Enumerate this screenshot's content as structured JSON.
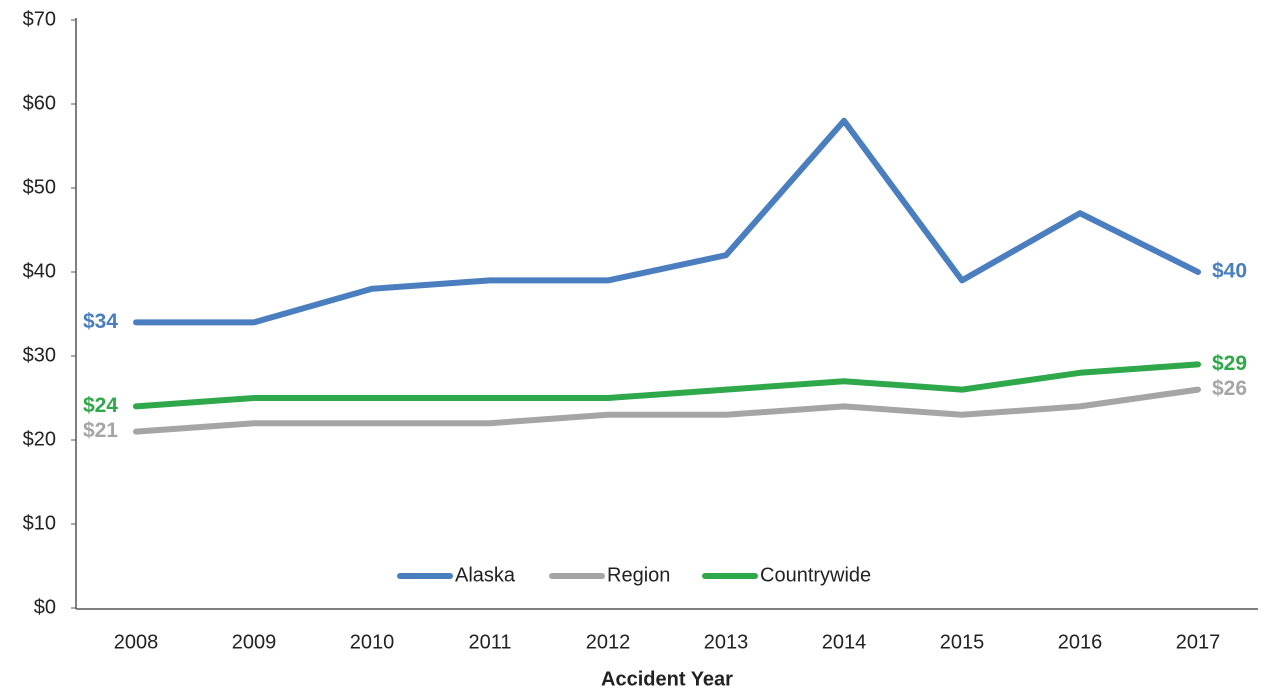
{
  "chart_data": {
    "type": "line",
    "x_label": "Accident Year",
    "categories": [
      "2008",
      "2009",
      "2010",
      "2011",
      "2012",
      "2013",
      "2014",
      "2015",
      "2016",
      "2017"
    ],
    "series": [
      {
        "name": "Alaska",
        "color": "#4a7ebf",
        "values": [
          34,
          34,
          38,
          39,
          39,
          42,
          58,
          39,
          47,
          40
        ],
        "value_labels": [
          "$34",
          null,
          null,
          null,
          null,
          null,
          null,
          null,
          null,
          "$40"
        ]
      },
      {
        "name": "Region",
        "color": "#a5a5a5",
        "values": [
          21,
          22,
          22,
          22,
          23,
          23,
          24,
          23,
          24,
          26
        ],
        "value_labels": [
          "$21",
          null,
          null,
          null,
          null,
          null,
          null,
          null,
          null,
          "$26"
        ]
      },
      {
        "name": "Countrywide",
        "color": "#2ea84a",
        "values": [
          24,
          25,
          25,
          25,
          25,
          26,
          27,
          26,
          28,
          29
        ],
        "value_labels": [
          "$24",
          null,
          null,
          null,
          null,
          null,
          null,
          null,
          null,
          "$29"
        ]
      }
    ],
    "ylim": [
      0,
      70
    ],
    "yticks": [
      {
        "value": 0,
        "label": "$0"
      },
      {
        "value": 10,
        "label": "$10"
      },
      {
        "value": 20,
        "label": "$20"
      },
      {
        "value": 30,
        "label": "$30"
      },
      {
        "value": 40,
        "label": "$40"
      },
      {
        "value": 50,
        "label": "$50"
      },
      {
        "value": 60,
        "label": "$60"
      },
      {
        "value": 70,
        "label": "$70"
      }
    ],
    "grid": false,
    "legend": "bottom"
  }
}
